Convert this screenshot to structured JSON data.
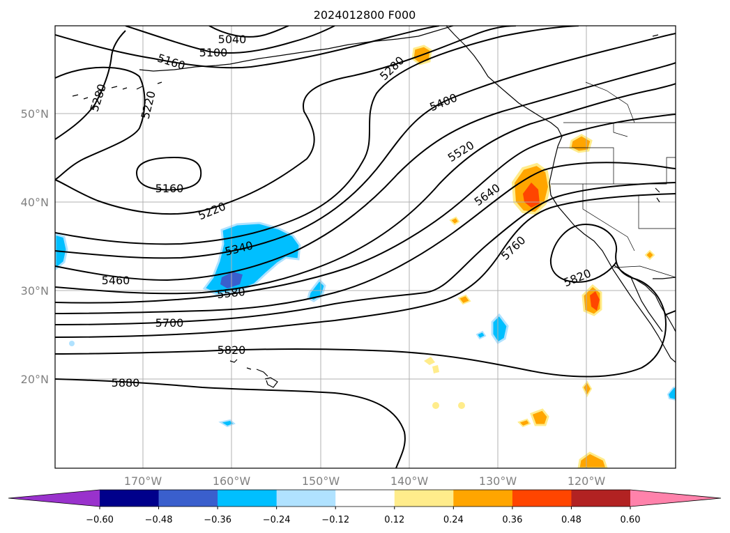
{
  "title": "2024012800 F000",
  "lat_labels": [
    "50°N",
    "40°N",
    "30°N",
    "20°N"
  ],
  "lon_labels": [
    "170°W",
    "160°W",
    "150°W",
    "140°W",
    "130°W",
    "120°W"
  ],
  "contour_labels": [
    "5040",
    "5100",
    "5160",
    "5280",
    "5220",
    "5160",
    "5220",
    "5340",
    "5460",
    "5580",
    "5700",
    "5820",
    "5880",
    "5280",
    "5400",
    "5520",
    "5640",
    "5760",
    "5820"
  ],
  "colorbar": {
    "ticks": [
      "−0.60",
      "−0.48",
      "−0.36",
      "−0.24",
      "−0.12",
      "0.12",
      "0.24",
      "0.36",
      "0.48",
      "0.60"
    ],
    "colors": [
      "#9932cc",
      "#00008b",
      "#3a5fcd",
      "#00bfff",
      "#b0e2ff",
      "#ffffff",
      "#ffec8b",
      "#ffa500",
      "#ff4500",
      "#b22222",
      "#ff82ab"
    ]
  },
  "anomaly_colors": {
    "neg_strong": "#00bfff",
    "neg_weak": "#b0e2ff",
    "neg_core": "#3a5fcd",
    "pos_weak": "#ffec8b",
    "pos_mid": "#ffa500",
    "pos_strong": "#ff4500"
  }
}
